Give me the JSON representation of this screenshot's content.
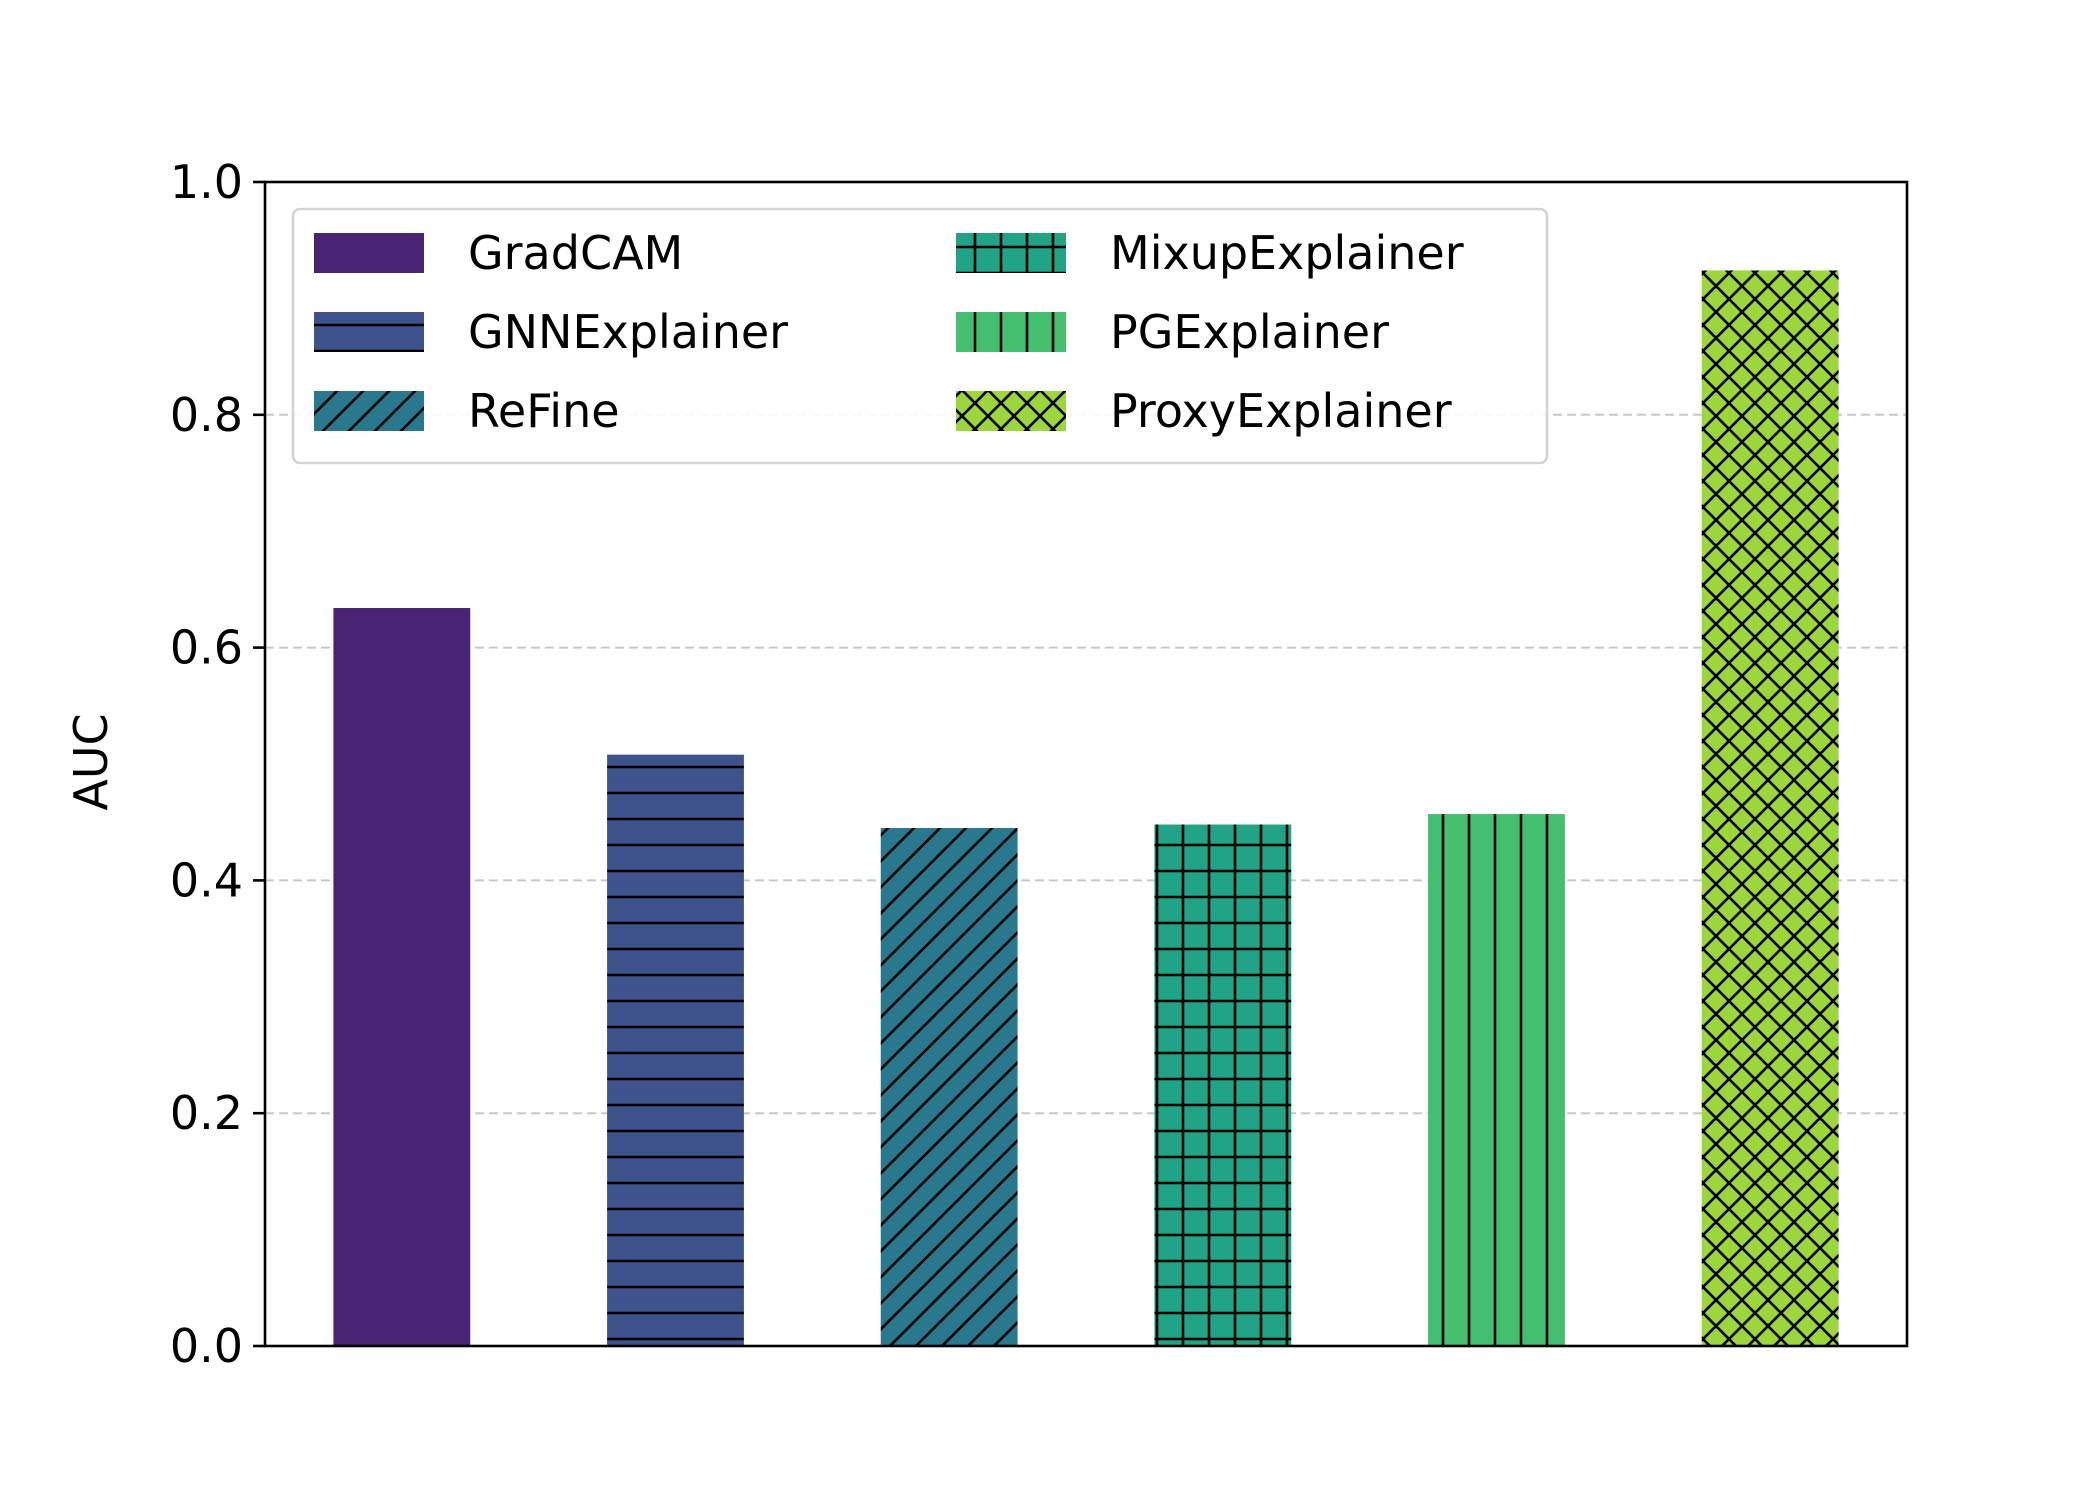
{
  "chart_data": {
    "type": "bar",
    "title": "",
    "xlabel": "",
    "ylabel": "AUC",
    "ylim": [
      0,
      1.0
    ],
    "yticks": [
      0.0,
      0.2,
      0.4,
      0.6,
      0.8,
      1.0
    ],
    "ytick_labels": [
      "0.0",
      "0.2",
      "0.4",
      "0.6",
      "0.8",
      "1.0"
    ],
    "grid": "y, dashed, at 0.2 0.4 0.6 0.8",
    "legend_position": "top-left",
    "legend_columns": 2,
    "series": [
      {
        "name": "GradCAM",
        "value": 0.634,
        "color": "#482374",
        "hatch": "none"
      },
      {
        "name": "GNNExplainer",
        "value": 0.508,
        "color": "#3e528b",
        "hatch": "horizontal"
      },
      {
        "name": "ReFine",
        "value": 0.445,
        "color": "#2a788e",
        "hatch": "diagonal"
      },
      {
        "name": "MixupExplainer",
        "value": 0.448,
        "color": "#21a386",
        "hatch": "grid"
      },
      {
        "name": "PGExplainer",
        "value": 0.457,
        "color": "#44bf70",
        "hatch": "vertical"
      },
      {
        "name": "ProxyExplainer",
        "value": 0.924,
        "color": "#9ad63c",
        "hatch": "crosshatch"
      }
    ]
  }
}
